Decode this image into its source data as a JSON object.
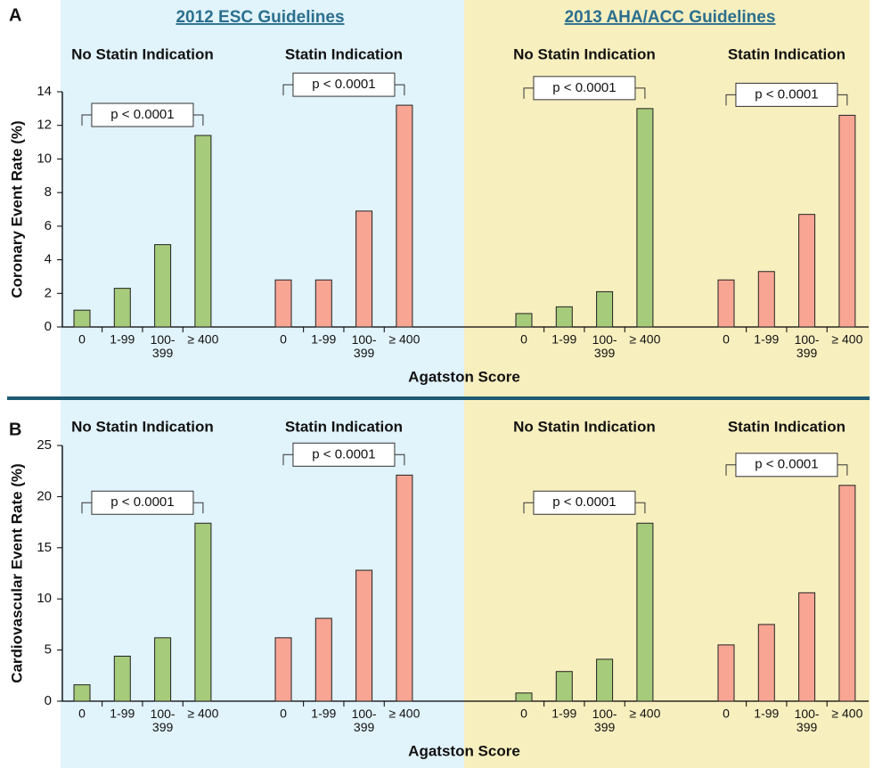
{
  "sections": [
    {
      "title": "2012 ESC Guidelines"
    },
    {
      "title": "2013 AHA/ACC Guidelines"
    }
  ],
  "chart_data": [
    {
      "type": "bar",
      "panel": "A",
      "ylabel": "Coronary Event Rate (%)",
      "xlabel": "Agatston Score",
      "ylim": [
        0,
        14
      ],
      "yticks": [
        0,
        2,
        4,
        6,
        8,
        10,
        12,
        14
      ],
      "categories": [
        "0",
        "1-99",
        "100-399",
        "≥ 400"
      ],
      "groups": [
        {
          "name": "No Statin Indication",
          "color": "#a6cb7a",
          "values": [
            1.0,
            2.3,
            4.9,
            11.4
          ],
          "annotation": "p < 0.0001"
        },
        {
          "name": "Statin Indication",
          "color": "#f8a594",
          "values": [
            2.8,
            2.8,
            6.9,
            13.2
          ],
          "annotation": "p < 0.0001"
        },
        {
          "name": "No Statin Indication",
          "color": "#a6cb7a",
          "values": [
            0.8,
            1.2,
            2.1,
            13.0
          ],
          "annotation": "p < 0.0001"
        },
        {
          "name": "Statin Indication",
          "color": "#f8a594",
          "values": [
            2.8,
            3.3,
            6.7,
            12.6
          ],
          "annotation": "p < 0.0001"
        }
      ]
    },
    {
      "type": "bar",
      "panel": "B",
      "ylabel": "Cardiovascular Event Rate (%)",
      "xlabel": "Agatston Score",
      "ylim": [
        0,
        25
      ],
      "yticks": [
        0,
        5,
        10,
        15,
        20,
        25
      ],
      "categories": [
        "0",
        "1-99",
        "100-399",
        "≥ 400"
      ],
      "groups": [
        {
          "name": "No Statin Indication",
          "color": "#a6cb7a",
          "values": [
            1.6,
            4.4,
            6.2,
            17.4
          ],
          "annotation": "p < 0.0001"
        },
        {
          "name": "Statin Indication",
          "color": "#f8a594",
          "values": [
            6.2,
            8.1,
            12.8,
            22.1
          ],
          "annotation": "p < 0.0001"
        },
        {
          "name": "No Statin Indication",
          "color": "#a6cb7a",
          "values": [
            0.8,
            2.9,
            4.1,
            17.4
          ],
          "annotation": "p < 0.0001"
        },
        {
          "name": "Statin Indication",
          "color": "#f8a594",
          "values": [
            5.5,
            7.5,
            10.6,
            21.1
          ],
          "annotation": "p < 0.0001"
        }
      ]
    }
  ]
}
